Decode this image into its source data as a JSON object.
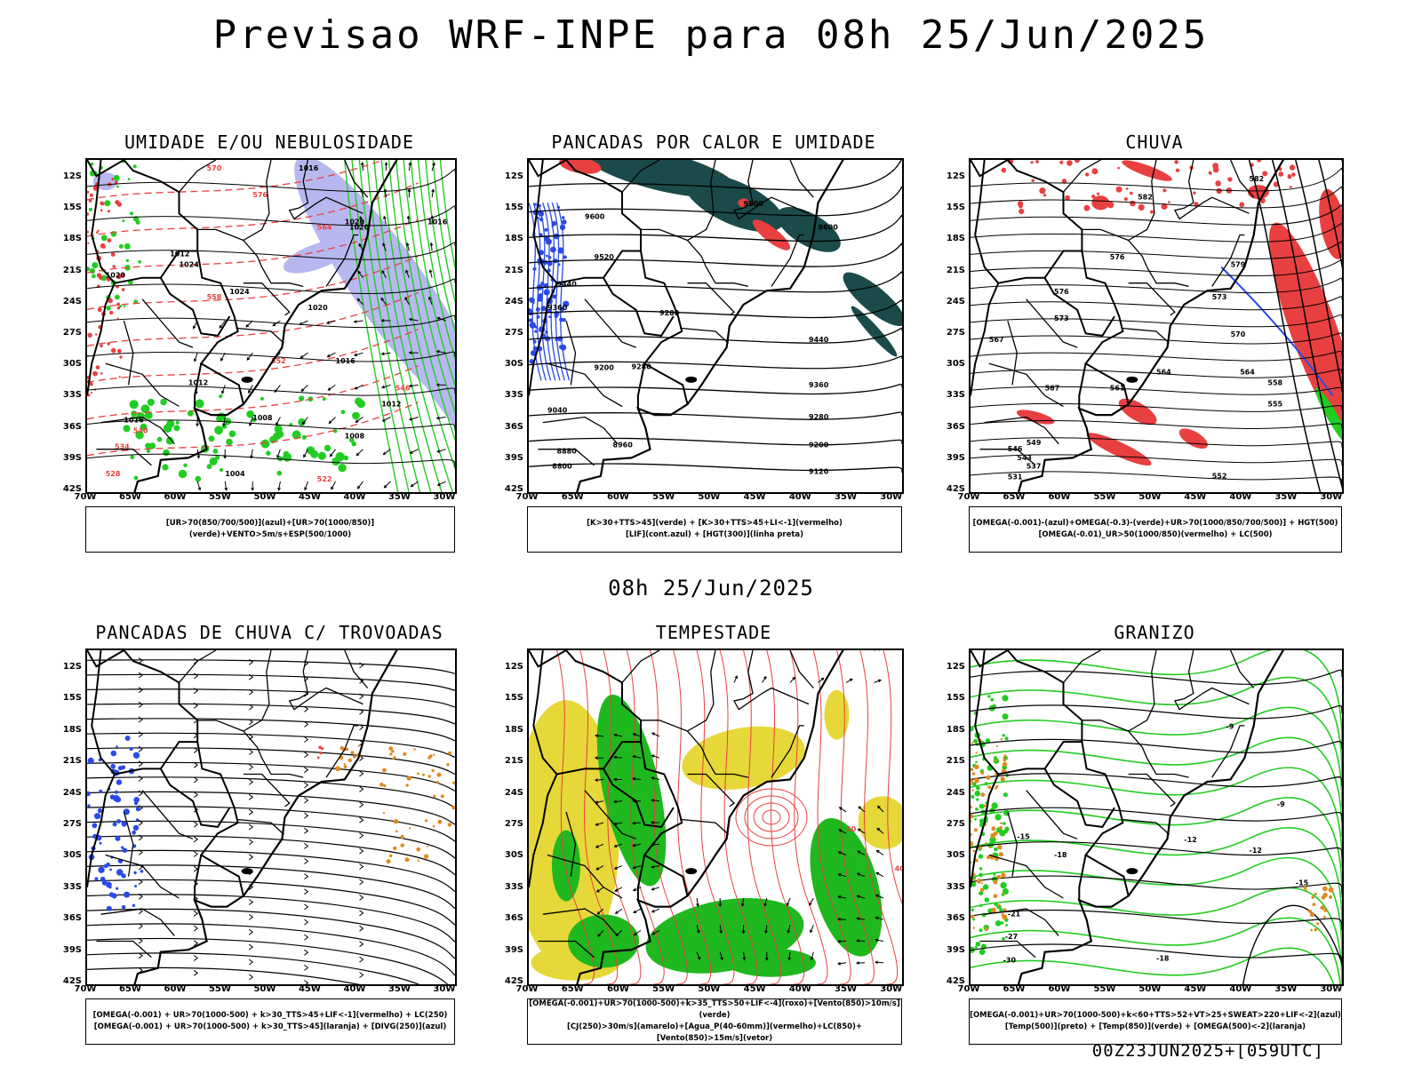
{
  "title": "Previsao WRF-INPE  para 08h 25/Jun/2025",
  "middle_label": "08h 25/Jun/2025",
  "footer": "00Z23JUN2025+[059UTC]",
  "axes": {
    "y": [
      "12S",
      "15S",
      "18S",
      "21S",
      "24S",
      "27S",
      "30S",
      "33S",
      "36S",
      "39S",
      "42S"
    ],
    "x": [
      "70W",
      "65W",
      "60W",
      "55W",
      "50W",
      "45W",
      "40W",
      "35W",
      "30W"
    ]
  },
  "colors": {
    "purple_light": "#b8b8f0",
    "green": "#22cc22",
    "red": "#e84040",
    "dark_teal": "#1b4a4a",
    "blue": "#2a4ae8",
    "orange": "#e08a20",
    "yellow": "#e6d838",
    "grass_green": "#1fb81f"
  },
  "panels": [
    {
      "id": "p1",
      "title": "UMIDADE E/OU NEBULOSIDADE",
      "legend": [
        "[UR>70(850/700/500)](azul)+[UR>70(1000/850)](verde)+VENTO>5m/s+ESP(500/1000)"
      ],
      "labels": [
        "1016",
        "1020",
        "1020",
        "1016",
        "1012",
        "1020",
        "1024",
        "1024",
        "1020",
        "1016",
        "1012",
        "1016",
        "1008",
        "1012",
        "1004",
        "1008",
        "570",
        "576",
        "564",
        "558",
        "552",
        "546",
        "540",
        "534",
        "528",
        "522"
      ]
    },
    {
      "id": "p2",
      "title": "PANCADAS POR CALOR E UMIDADE",
      "legend": [
        "[K>30+TTS>45](verde) + [K>30+TTS>45+LI<-1](vermelho)",
        "[LIF](cont.azul) + [HGT(300)](linha preta)"
      ],
      "labels": [
        "9600",
        "9500",
        "9600",
        "9520",
        "9440",
        "9360",
        "9280",
        "9440",
        "9200",
        "9280",
        "9360",
        "9040",
        "9280",
        "8960",
        "8880",
        "8800",
        "9200",
        "9120"
      ]
    },
    {
      "id": "p3",
      "title": "CHUVA",
      "legend": [
        "[OMEGA(-0.001)-(azul)+OMEGA(-0.3)-(verde)+UR>70(1000/850/700/500)] + HGT(500)",
        "[OMEGA(-0.01)_UR>50(1000/850)(vermelho) + LC(500)"
      ],
      "labels": [
        "582",
        "582",
        "576",
        "579",
        "576",
        "573",
        "573",
        "567",
        "570",
        "564",
        "567",
        "564",
        "561",
        "558",
        "555",
        "549",
        "546",
        "543",
        "537",
        "531",
        "552"
      ]
    },
    {
      "id": "p4",
      "title": "PANCADAS DE CHUVA C/ TROVOADAS",
      "legend": [
        "[OMEGA(-0.001) + UR>70(1000-500) + k>30_TTS>45+LIF<-1](vermelho) + LC(250)",
        "[OMEGA(-0.001) + UR>70(1000-500) + k>30_TTS>45](laranja) + [DIVG(250)](azul)"
      ],
      "labels": []
    },
    {
      "id": "p5",
      "title": "TEMPESTADE",
      "legend": [
        "[OMEGA(-0.001)+UR>70(1000-500)+k>35_TTS>50+LIF<-4](roxo)+[Vento(850)>10m/s](verde)",
        "[CJ(250)>30m/s](amarelo)+[Agua_P(40-60mm)](vermelho)+LC(850)+[Vento(850)>15m/s](vetor)"
      ],
      "labels": [
        "40",
        "40"
      ]
    },
    {
      "id": "p6",
      "title": "GRANIZO",
      "legend": [
        "[OMEGA(-0.001)+UR>70(1000-500)+k<60+TTS>52+VT>25+SWEAT>220+LIF<-2](azul)",
        "[Temp(500)](preto) + [Temp(850)](verde) + [OMEGA(500)<-2](laranja)"
      ],
      "labels": [
        "-9",
        "-12",
        "-18",
        "-12",
        "-15",
        "-21",
        "-27",
        "-30",
        "-18",
        "-15",
        "-9"
      ]
    }
  ]
}
